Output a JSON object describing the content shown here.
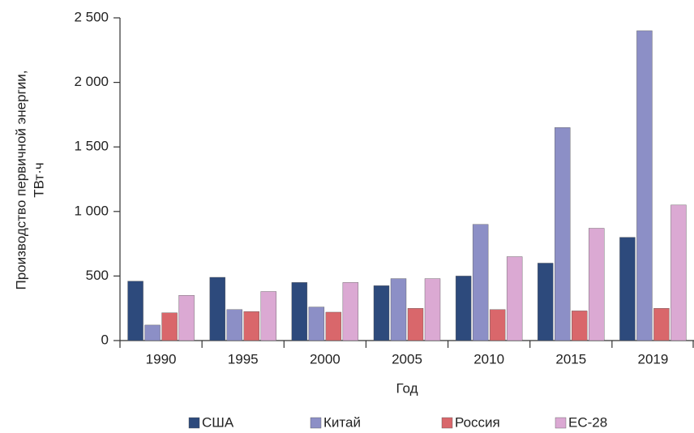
{
  "chart_data": {
    "type": "bar",
    "y_label": [
      "Производство первичной энергии,",
      "ТВт·ч"
    ],
    "x_label": "Год",
    "categories": [
      "1990",
      "1995",
      "2000",
      "2005",
      "2010",
      "2015",
      "2019"
    ],
    "series": [
      {
        "name": "США",
        "color": "#2d4a7c",
        "values": [
          460,
          490,
          450,
          425,
          500,
          600,
          800
        ]
      },
      {
        "name": "Китай",
        "color": "#8c8fc6",
        "values": [
          120,
          240,
          260,
          480,
          900,
          1650,
          2400
        ]
      },
      {
        "name": "Россия",
        "color": "#d9676b",
        "values": [
          215,
          225,
          220,
          250,
          240,
          230,
          250
        ]
      },
      {
        "name": "ЕС-28",
        "color": "#dba9d3",
        "values": [
          350,
          380,
          450,
          480,
          650,
          870,
          1050
        ]
      }
    ],
    "ylim": [
      0,
      2500
    ],
    "yticks": [
      0,
      500,
      {
        "value": 1000,
        "label": "1 000"
      },
      {
        "value": 1500,
        "label": "1 500"
      },
      {
        "value": 2000,
        "label": "2 000"
      },
      {
        "value": 2500,
        "label": "2 500"
      }
    ],
    "grid": false,
    "legend": "bottom"
  }
}
